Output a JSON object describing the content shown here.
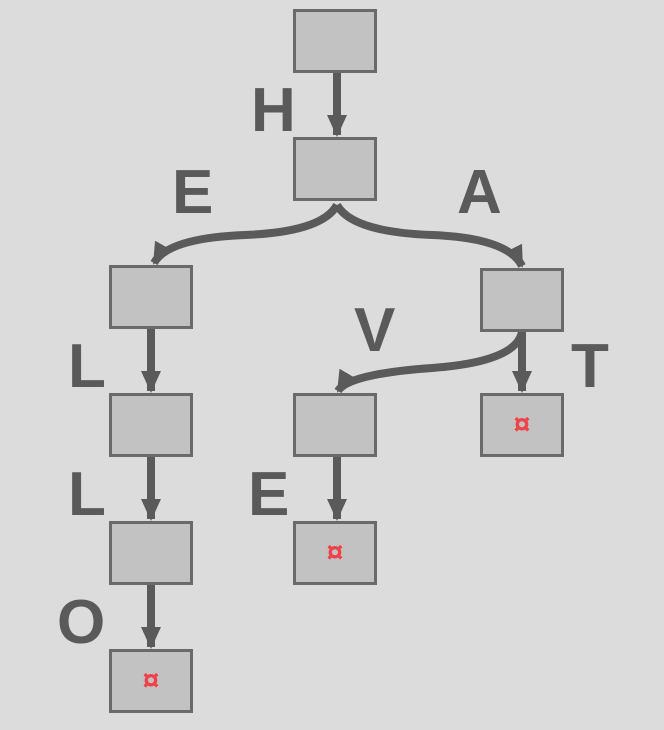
{
  "colors": {
    "background": "#dcdcdc",
    "node_fill": "#c2c2c2",
    "node_border": "#6a6a6a",
    "edge": "#5a5a5a",
    "terminal_marker": "#f0424a"
  },
  "terminal_marker_glyph": "¤",
  "nodes": [
    {
      "id": "root",
      "terminal": false
    },
    {
      "id": "h",
      "terminal": false
    },
    {
      "id": "he",
      "terminal": false
    },
    {
      "id": "ha",
      "terminal": false
    },
    {
      "id": "hel",
      "terminal": false
    },
    {
      "id": "hav",
      "terminal": false
    },
    {
      "id": "hat",
      "terminal": true
    },
    {
      "id": "hell",
      "terminal": false
    },
    {
      "id": "have",
      "terminal": true
    },
    {
      "id": "hello",
      "terminal": true
    }
  ],
  "edges": [
    {
      "from": "root",
      "to": "h",
      "label": "H"
    },
    {
      "from": "h",
      "to": "he",
      "label": "E"
    },
    {
      "from": "h",
      "to": "ha",
      "label": "A"
    },
    {
      "from": "he",
      "to": "hel",
      "label": "L"
    },
    {
      "from": "hel",
      "to": "hell",
      "label": "L"
    },
    {
      "from": "hell",
      "to": "hello",
      "label": "O"
    },
    {
      "from": "ha",
      "to": "hav",
      "label": "V"
    },
    {
      "from": "ha",
      "to": "hat",
      "label": "T"
    },
    {
      "from": "hav",
      "to": "have",
      "label": "E"
    }
  ]
}
